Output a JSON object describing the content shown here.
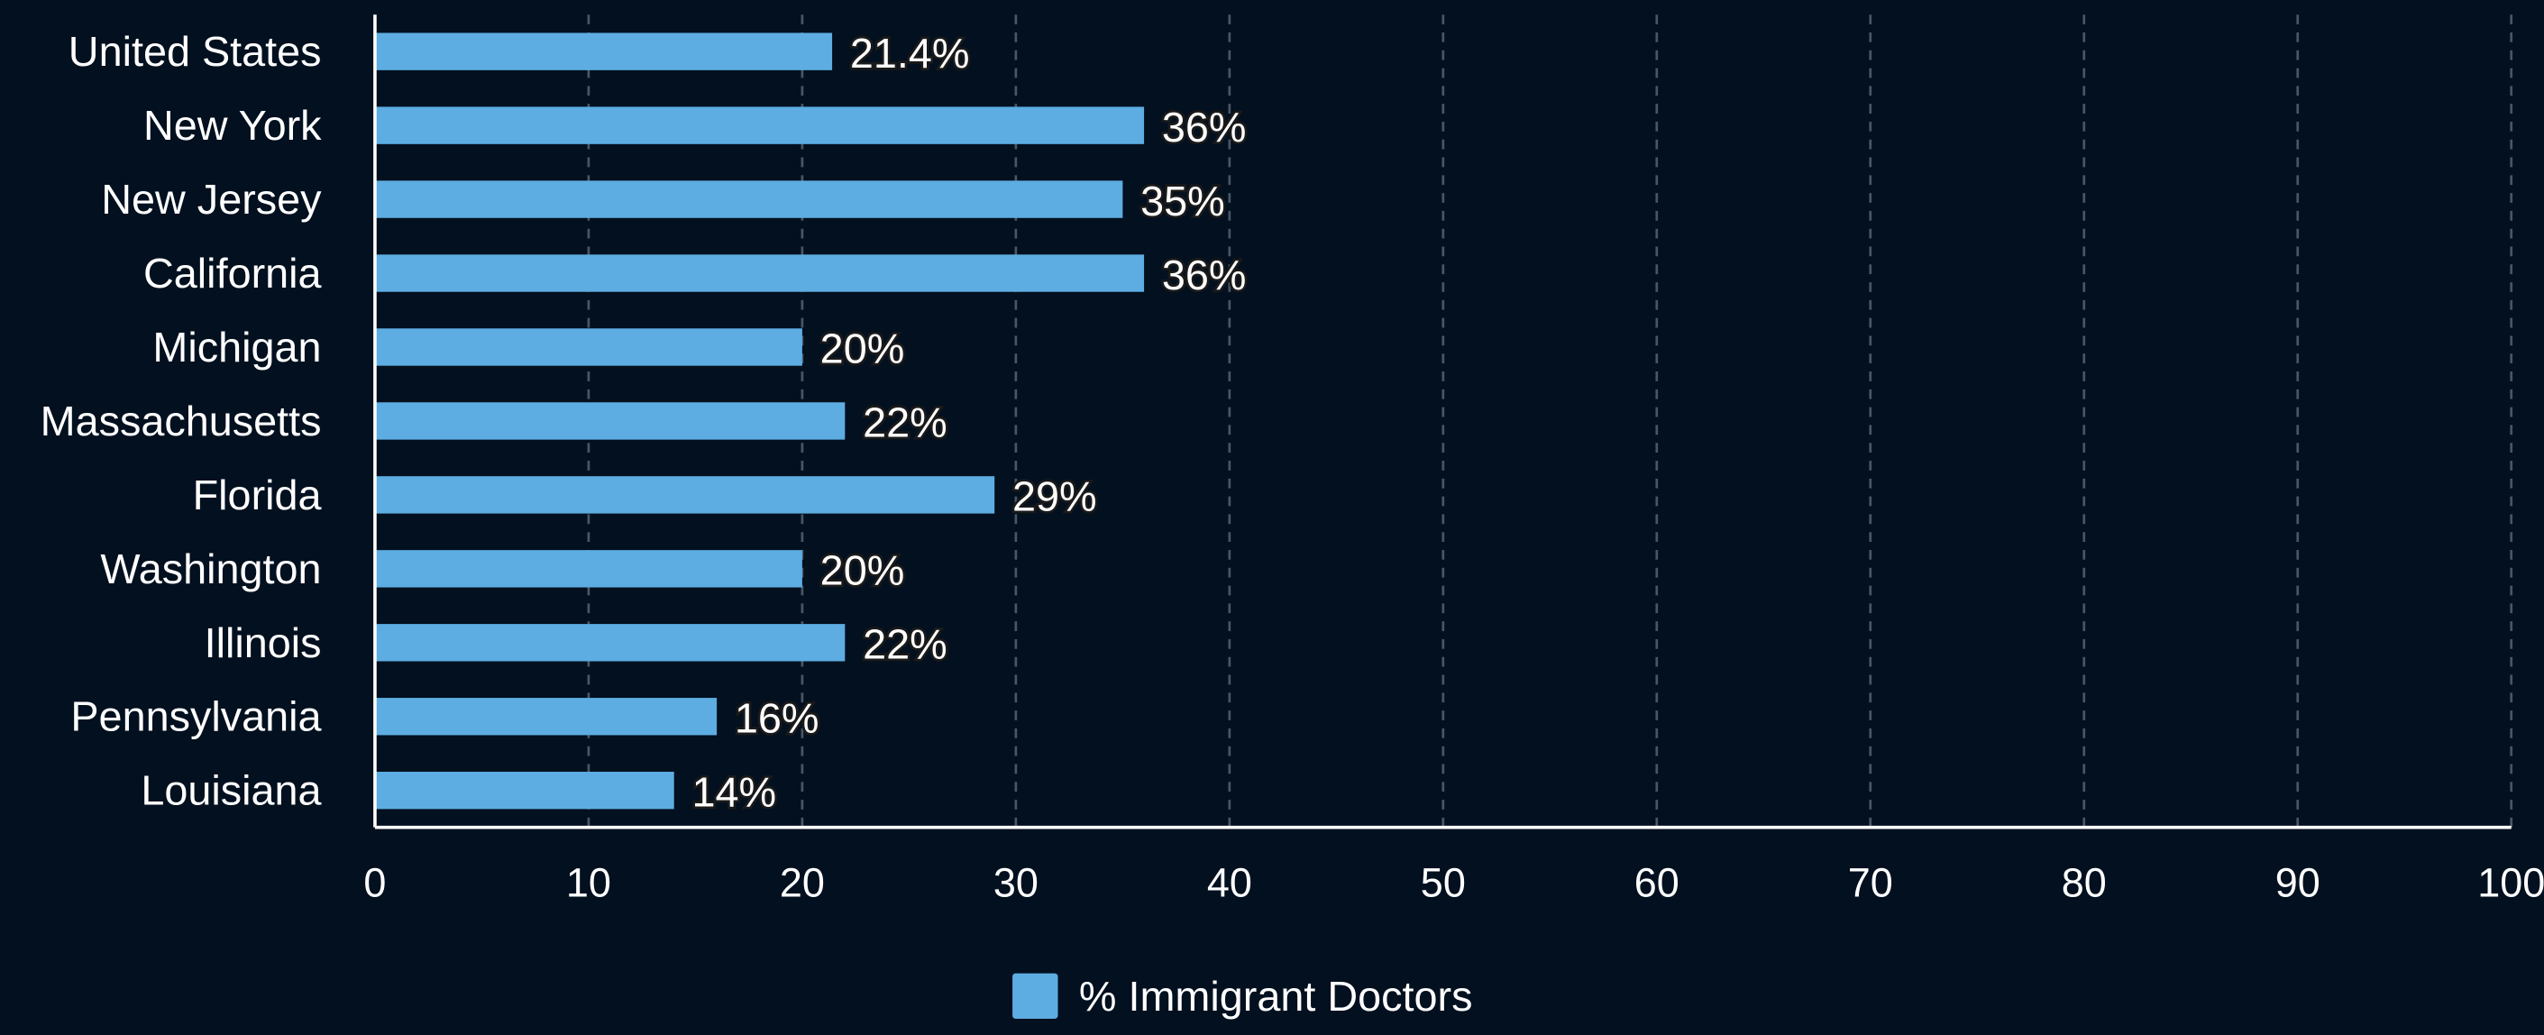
{
  "chart_data": {
    "type": "bar",
    "orientation": "horizontal",
    "categories": [
      "United States",
      "New York",
      "New Jersey",
      "California",
      "Michigan",
      "Massachusetts",
      "Florida",
      "Washington",
      "Illinois",
      "Pennsylvania",
      "Louisiana"
    ],
    "series": [
      {
        "name": "% Immigrant Doctors",
        "color": "#5dade2",
        "values": [
          21.4,
          36,
          35,
          36,
          20,
          22,
          29,
          20,
          22,
          16,
          14
        ],
        "value_labels": [
          "21.4%",
          "36%",
          "35%",
          "36%",
          "20%",
          "22%",
          "29%",
          "20%",
          "22%",
          "16%",
          "14%"
        ]
      }
    ],
    "xlim": [
      0,
      100
    ],
    "xticks": [
      0,
      10,
      20,
      30,
      40,
      50,
      60,
      70,
      80,
      90,
      100
    ],
    "grid": true,
    "legend": "bottom"
  }
}
